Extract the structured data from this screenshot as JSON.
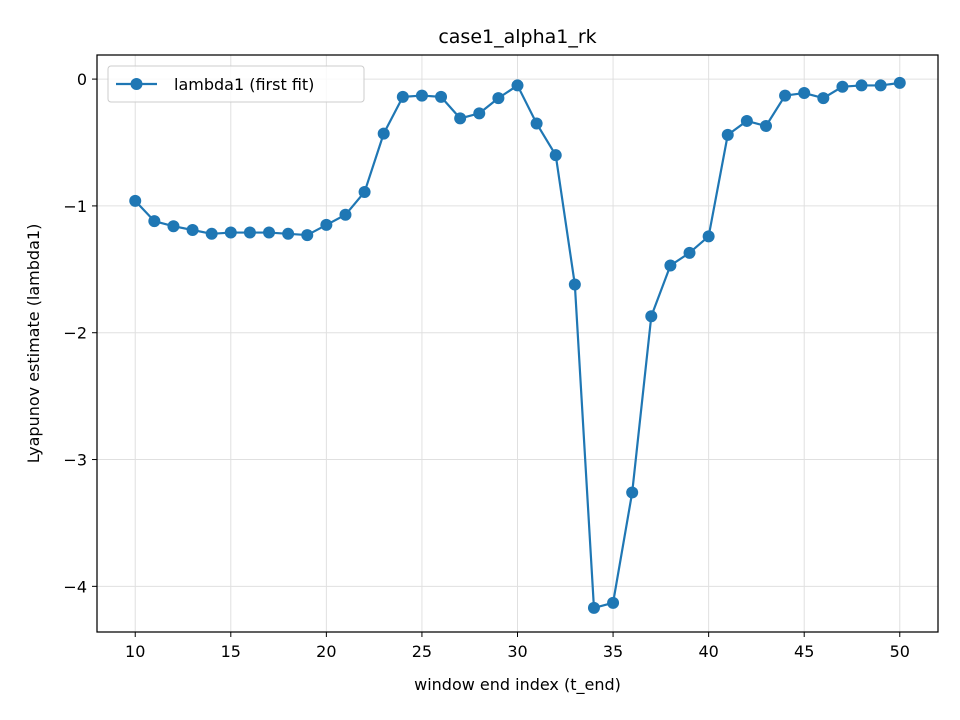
{
  "colors": {
    "series": "#1f77b4",
    "grid": "#e0e0e0",
    "axis": "#000000",
    "legend_border": "#cccccc"
  },
  "chart_data": {
    "type": "line",
    "title": "case1_alpha1_rk",
    "xlabel": "window end index (t_end)",
    "ylabel": "Lyapunov estimate (lambda1)",
    "xlim": [
      8,
      52
    ],
    "ylim": [
      -4.36,
      0.19
    ],
    "xticks": [
      10,
      15,
      20,
      25,
      30,
      35,
      40,
      45,
      50
    ],
    "yticks": [
      0,
      -1,
      -2,
      -3,
      -4
    ],
    "ytick_labels": [
      "0",
      "−1",
      "−2",
      "−3",
      "−4"
    ],
    "grid": true,
    "legend_position": "top-left",
    "series": [
      {
        "name": "lambda1 (first fit)",
        "marker": "circle",
        "x": [
          10,
          11,
          12,
          13,
          14,
          15,
          16,
          17,
          18,
          19,
          20,
          21,
          22,
          23,
          24,
          25,
          26,
          27,
          28,
          29,
          30,
          31,
          32,
          33,
          34,
          35,
          36,
          37,
          38,
          39,
          40,
          41,
          42,
          43,
          44,
          45,
          46,
          47,
          48,
          49,
          50
        ],
        "y": [
          -0.96,
          -1.12,
          -1.16,
          -1.19,
          -1.22,
          -1.21,
          -1.21,
          -1.21,
          -1.22,
          -1.23,
          -1.15,
          -1.07,
          -0.89,
          -0.43,
          -0.14,
          -0.13,
          -0.14,
          -0.31,
          -0.27,
          -0.15,
          -0.05,
          -0.35,
          -0.6,
          -1.62,
          -4.17,
          -4.13,
          -3.26,
          -1.87,
          -1.47,
          -1.37,
          -1.24,
          -0.44,
          -0.33,
          -0.37,
          -0.13,
          -0.11,
          -0.15,
          -0.06,
          -0.05,
          -0.05,
          -0.03
        ]
      }
    ]
  }
}
